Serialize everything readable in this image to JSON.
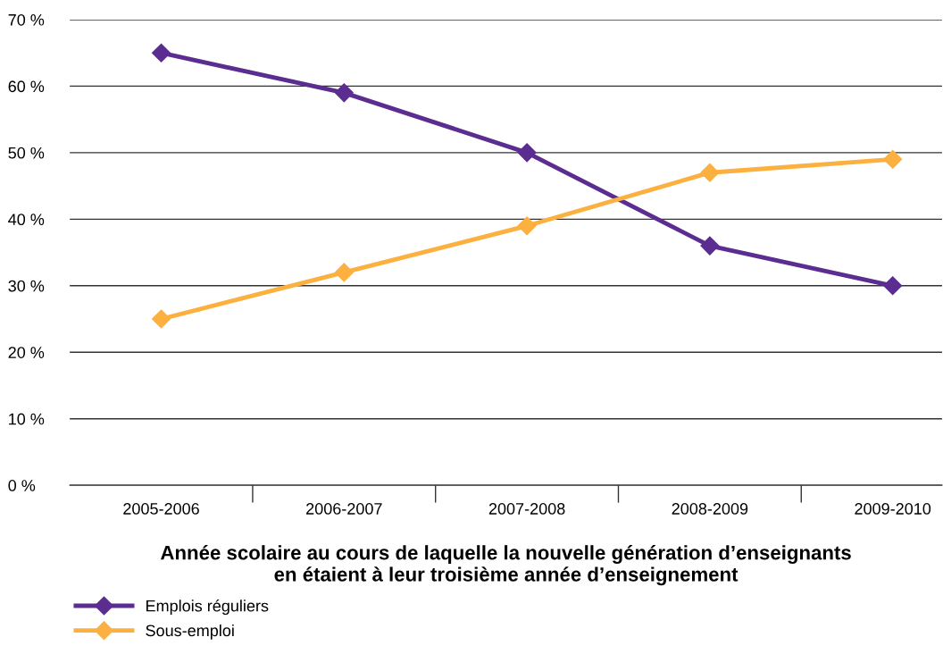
{
  "chart_data": {
    "type": "line",
    "xlabel": "Année scolaire au cours de laquelle la nouvelle génération d’enseignants\nen étaient à leur troisième année d’enseignement",
    "categories": [
      "2005-2006",
      "2006-2007",
      "2007-2008",
      "2008-2009",
      "2009-2010"
    ],
    "series": [
      {
        "name": "Emplois réguliers",
        "color": "#5c2d91",
        "values": [
          65,
          59,
          50,
          36,
          30
        ]
      },
      {
        "name": "Sous-emploi",
        "color": "#fbb040",
        "values": [
          25,
          32,
          39,
          47,
          49
        ]
      }
    ],
    "ylim": [
      0,
      70
    ],
    "yticks": [
      {
        "value": 0,
        "label": "0 %"
      },
      {
        "value": 10,
        "label": "10 %"
      },
      {
        "value": 20,
        "label": "20 %"
      },
      {
        "value": 30,
        "label": "30 %"
      },
      {
        "value": 40,
        "label": "40 %"
      },
      {
        "value": 50,
        "label": "50 %"
      },
      {
        "value": 60,
        "label": "60 %"
      },
      {
        "value": 70,
        "label": "70 %"
      }
    ],
    "grid": "y",
    "legend": "bottom left",
    "marker": "diamond",
    "line_style": "solid"
  }
}
